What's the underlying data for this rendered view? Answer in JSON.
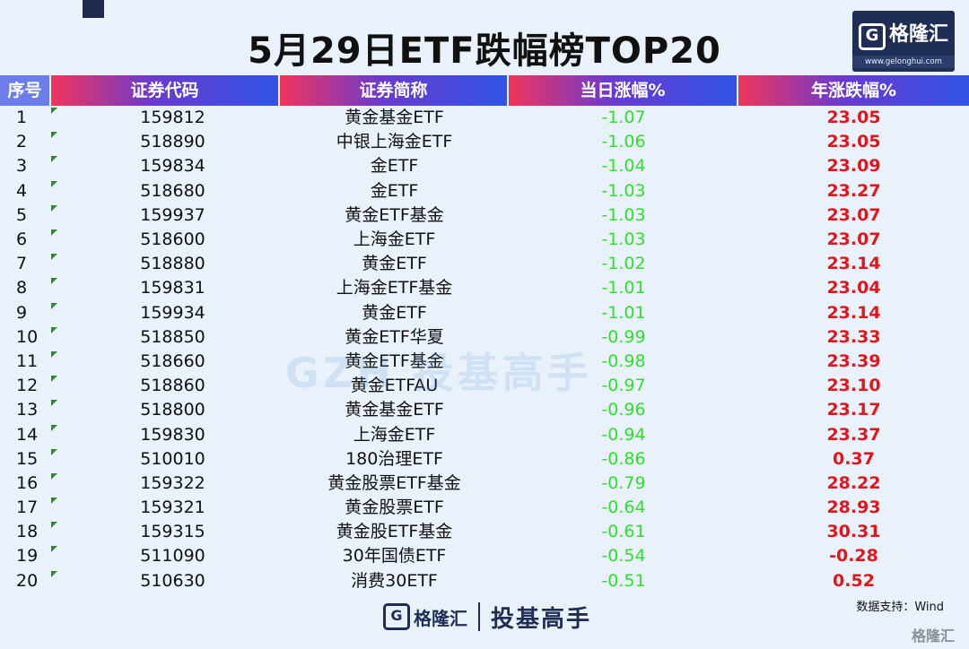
{
  "title": "5月29日ETF跌幅榜TOP20",
  "logo": {
    "name": "格隆汇",
    "url": "www.gelonghui.com",
    "icon": "g-icon"
  },
  "headers": [
    "序号",
    "证券代码",
    "证券简称",
    "当日涨幅%",
    "年涨跌幅%"
  ],
  "rows": [
    {
      "rank": "1",
      "code": "159812",
      "name": "黄金基金ETF",
      "daily": "-1.07",
      "yearly": "23.05"
    },
    {
      "rank": "2",
      "code": "518890",
      "name": "中银上海金ETF",
      "daily": "-1.06",
      "yearly": "23.05"
    },
    {
      "rank": "3",
      "code": "159834",
      "name": "金ETF",
      "daily": "-1.04",
      "yearly": "23.09"
    },
    {
      "rank": "4",
      "code": "518680",
      "name": "金ETF",
      "daily": "-1.03",
      "yearly": "23.27"
    },
    {
      "rank": "5",
      "code": "159937",
      "name": "黄金ETF基金",
      "daily": "-1.03",
      "yearly": "23.07"
    },
    {
      "rank": "6",
      "code": "518600",
      "name": "上海金ETF",
      "daily": "-1.03",
      "yearly": "23.07"
    },
    {
      "rank": "7",
      "code": "518880",
      "name": "黄金ETF",
      "daily": "-1.02",
      "yearly": "23.14"
    },
    {
      "rank": "8",
      "code": "159831",
      "name": "上海金ETF基金",
      "daily": "-1.01",
      "yearly": "23.04"
    },
    {
      "rank": "9",
      "code": "159934",
      "name": "黄金ETF",
      "daily": "-1.01",
      "yearly": "23.14"
    },
    {
      "rank": "10",
      "code": "518850",
      "name": "黄金ETF华夏",
      "daily": "-0.99",
      "yearly": "23.33"
    },
    {
      "rank": "11",
      "code": "518660",
      "name": "黄金ETF基金",
      "daily": "-0.98",
      "yearly": "23.39"
    },
    {
      "rank": "12",
      "code": "518860",
      "name": "黄金ETFAU",
      "daily": "-0.97",
      "yearly": "23.10"
    },
    {
      "rank": "13",
      "code": "518800",
      "name": "黄金基金ETF",
      "daily": "-0.96",
      "yearly": "23.17"
    },
    {
      "rank": "14",
      "code": "159830",
      "name": "上海金ETF",
      "daily": "-0.94",
      "yearly": "23.37"
    },
    {
      "rank": "15",
      "code": "510010",
      "name": "180治理ETF",
      "daily": "-0.86",
      "yearly": "0.37"
    },
    {
      "rank": "16",
      "code": "159322",
      "name": "黄金股票ETF基金",
      "daily": "-0.79",
      "yearly": "28.22"
    },
    {
      "rank": "17",
      "code": "159321",
      "name": "黄金股票ETF",
      "daily": "-0.64",
      "yearly": "28.93"
    },
    {
      "rank": "18",
      "code": "159315",
      "name": "黄金股ETF基金",
      "daily": "-0.61",
      "yearly": "30.31"
    },
    {
      "rank": "19",
      "code": "511090",
      "name": "30年国债ETF",
      "daily": "-0.54",
      "yearly": "-0.28"
    },
    {
      "rank": "20",
      "code": "510630",
      "name": "消费30ETF",
      "daily": "-0.51",
      "yearly": "0.52"
    }
  ],
  "watermark": "GZH 投基高手",
  "source": "数据支持：Wind",
  "footer": {
    "brand": "格隆汇",
    "site": "www.gelonghui.com",
    "slogan": "投基高手"
  },
  "corner_watermark": "格隆汇",
  "colors": {
    "negative": "#2fe02b",
    "positive": "#e2141c",
    "brand": "#1e2e55"
  }
}
